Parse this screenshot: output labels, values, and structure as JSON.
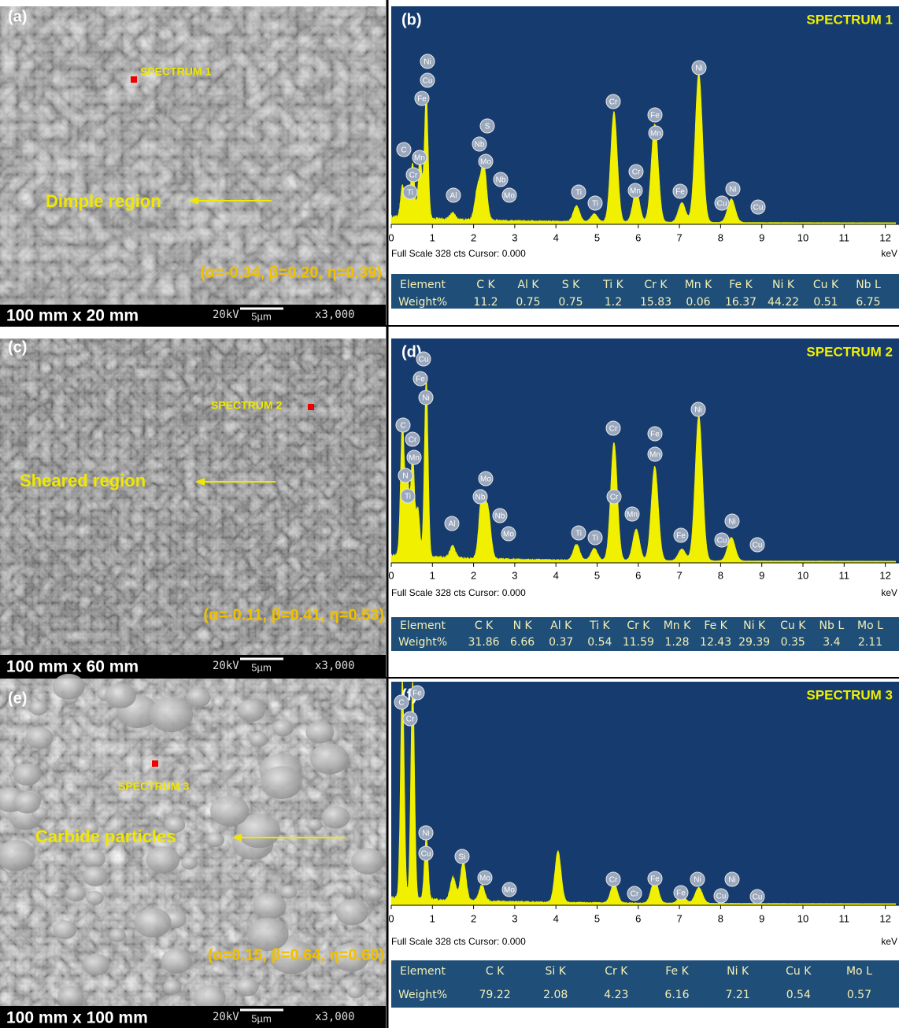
{
  "rows": [
    {
      "sem": {
        "panel": "(a)",
        "spectrum": "SPECTRUM 1",
        "region": "Dimple region",
        "params": "(α=-0.34, β=0.20, η=0.39)",
        "size": "100 mm x 20 mm",
        "voltage": "20kV",
        "scale": "5µm",
        "magnification": "x3,000"
      },
      "eds": {
        "panel": "(b)",
        "title": "SPECTRUM 1",
        "xticks": [
          0,
          1,
          2,
          3,
          4,
          5,
          6,
          7,
          8,
          9,
          10,
          11,
          12
        ],
        "unit": "keV",
        "footer": "Full Scale 328 cts Cursor: 0.000",
        "peaks": [
          "Ni",
          "Cu",
          "Fe",
          "S",
          "Nb",
          "Mo",
          "C",
          "Mn",
          "Cr",
          "Ti",
          "Al",
          "Nb",
          "Mo",
          "Ti",
          "Ti",
          "Cr",
          "Cr",
          "Mn",
          "Fe",
          "Mn",
          "Fe",
          "Ni",
          "Cu",
          "Ni",
          "Cu"
        ],
        "table": {
          "header": [
            "Element",
            "C K",
            "Al K",
            "S K",
            "Ti K",
            "Cr K",
            "Mn K",
            "Fe K",
            "Ni K",
            "Cu K",
            "Nb L"
          ],
          "label": "Weight%",
          "values": [
            11.2,
            0.75,
            0.75,
            1.2,
            15.83,
            0.06,
            16.37,
            44.22,
            0.51,
            6.75
          ]
        }
      }
    },
    {
      "sem": {
        "panel": "(c)",
        "spectrum": "SPECTRUM 2",
        "region": "Sheared region",
        "params": "(α=-0.11, β=0.41, η=0.53)",
        "size": "100 mm x 60 mm",
        "voltage": "20kV",
        "scale": "5µm",
        "magnification": "x3,000"
      },
      "eds": {
        "panel": "(d)",
        "title": "SPECTRUM 2",
        "xticks": [
          0,
          1,
          2,
          3,
          4,
          5,
          6,
          7,
          8,
          9,
          10,
          11,
          12
        ],
        "unit": "keV",
        "footer": "Full Scale 328 cts Cursor: 0.000",
        "peaks": [
          "Cu",
          "Fe",
          "Ni",
          "C",
          "Cr",
          "Mn",
          "N",
          "Ti",
          "Mo",
          "Nb",
          "Al",
          "Nb",
          "Mo",
          "Ti",
          "Ti",
          "Cr",
          "Cr",
          "Mn",
          "Fe",
          "Mn",
          "Fe",
          "Ni",
          "Cu",
          "Ni",
          "Cu"
        ],
        "table": {
          "header": [
            "Element",
            "C K",
            "N K",
            "Al K",
            "Ti K",
            "Cr K",
            "Mn K",
            "Fe K",
            "Ni K",
            "Cu K",
            "Nb L",
            "Mo L"
          ],
          "label": "Weight%",
          "values": [
            31.86,
            6.66,
            0.37,
            0.54,
            11.59,
            1.28,
            12.43,
            29.39,
            0.35,
            3.4,
            2.11
          ]
        }
      }
    },
    {
      "sem": {
        "panel": "(e)",
        "spectrum": "SPECTRUM 3",
        "region": "Carbide particles",
        "params": "(α=0.15, β=0.64, η=0.60)",
        "size": "100 mm x 100 mm",
        "voltage": "20kV",
        "scale": "5µm",
        "magnification": "x3,000"
      },
      "eds": {
        "panel": "(f)",
        "title": "SPECTRUM 3",
        "xticks": [
          0,
          1,
          2,
          3,
          4,
          5,
          6,
          7,
          8,
          9,
          10,
          11,
          12
        ],
        "unit": "keV",
        "footer": "Full Scale 328 cts Cursor: 0.000",
        "peaks": [
          "C",
          "Fe",
          "Cr",
          "Ni",
          "Cu",
          "Si",
          "Mo",
          "Mo",
          "Cr",
          "Cr",
          "Fe",
          "Fe",
          "Ni",
          "Ni",
          "Cu",
          "Cu"
        ],
        "table": {
          "header": [
            "Element",
            "C K",
            "Si K",
            "Cr K",
            "Fe K",
            "Ni K",
            "Cu K",
            "Mo L"
          ],
          "label": "Weight%",
          "values": [
            79.22,
            2.08,
            4.23,
            6.16,
            7.21,
            0.54,
            0.57
          ]
        }
      }
    }
  ]
}
